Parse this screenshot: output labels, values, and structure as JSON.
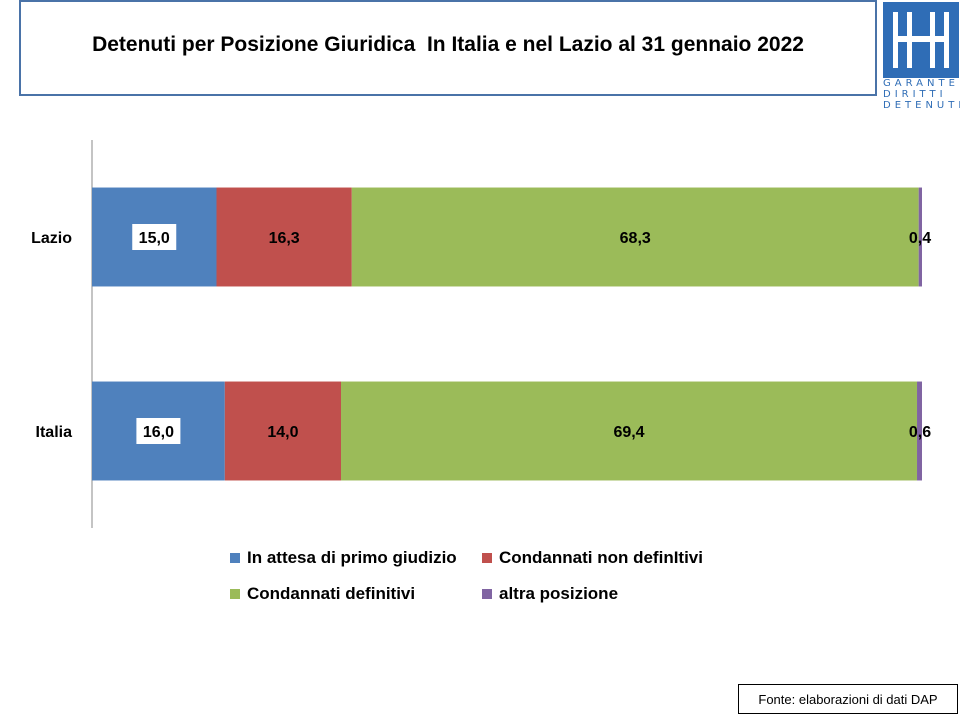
{
  "header": {
    "title": "Detenuti per Posizione Giuridica  In Italia e nel Lazio al 31 gennaio 2022"
  },
  "logo": {
    "icon": "garante-logo-icon",
    "lines": [
      "GARANTE",
      "DIRITTI",
      "DETENUTI"
    ],
    "color": "#2f6db6"
  },
  "source": {
    "text": "Fonte: elaborazioni di dati DAP"
  },
  "chart_data": {
    "type": "bar",
    "orientation": "horizontal",
    "stacked": true,
    "title": "Detenuti per Posizione Giuridica  In Italia e nel Lazio al 31 gennaio 2022",
    "categories": [
      "Lazio",
      "Italia"
    ],
    "xlim": [
      0,
      100
    ],
    "grid": false,
    "legend_position": "bottom",
    "series": [
      {
        "name": "In attesa di primo giudizio",
        "color": "#4f81bd",
        "values": [
          15.0,
          16.0
        ],
        "labels": [
          "15,0",
          "16,0"
        ]
      },
      {
        "name": "Condannati non definItivi",
        "color": "#c0504d",
        "values": [
          16.3,
          14.0
        ],
        "labels": [
          "16,3",
          "14,0"
        ]
      },
      {
        "name": "Condannati definitivi",
        "color": "#9bbb59",
        "values": [
          68.3,
          69.4
        ],
        "labels": [
          "68,3",
          "69,4"
        ]
      },
      {
        "name": "altra posizione",
        "color": "#8064a2",
        "values": [
          0.4,
          0.6
        ],
        "labels": [
          "0,4",
          "0,6"
        ]
      }
    ]
  }
}
